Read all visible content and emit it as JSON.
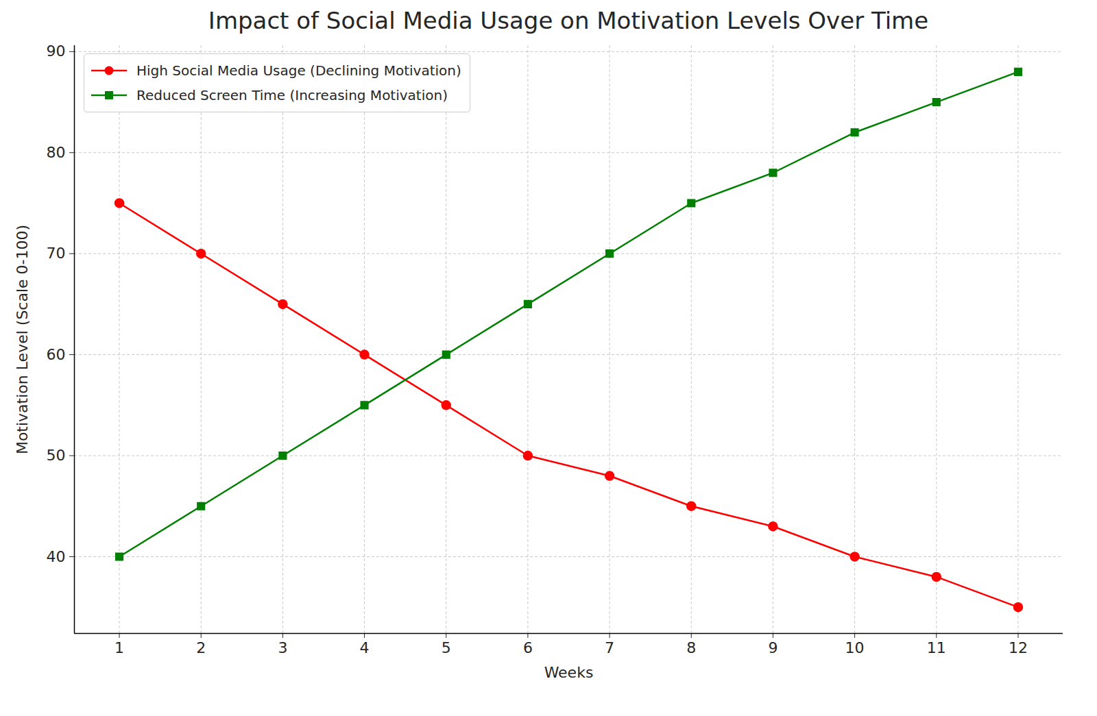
{
  "chart_data": {
    "type": "line",
    "title": "Impact of Social Media Usage on Motivation Levels Over Time",
    "x_label": "Weeks",
    "y_label": "Motivation Level (Scale 0-100)",
    "x": [
      1,
      2,
      3,
      4,
      5,
      6,
      7,
      8,
      9,
      10,
      11,
      12
    ],
    "series": [
      {
        "name": "High Social Media Usage (Declining Motivation)",
        "color": "#ff0000",
        "marker": "circle",
        "values": [
          75,
          70,
          65,
          60,
          55,
          50,
          48,
          45,
          43,
          40,
          38,
          35
        ]
      },
      {
        "name": "Reduced Screen Time (Increasing Motivation)",
        "color": "#008000",
        "marker": "square",
        "values": [
          40,
          45,
          50,
          55,
          60,
          65,
          70,
          75,
          78,
          82,
          85,
          88
        ]
      }
    ],
    "xlim": [
      0.45,
      12.55
    ],
    "xticks": [
      1,
      2,
      3,
      4,
      5,
      6,
      7,
      8,
      9,
      10,
      11,
      12
    ],
    "ylim": [
      32.4,
      90.6
    ],
    "yticks": [
      40,
      50,
      60,
      70,
      80,
      90
    ],
    "grid": true,
    "legend": "upper left"
  }
}
